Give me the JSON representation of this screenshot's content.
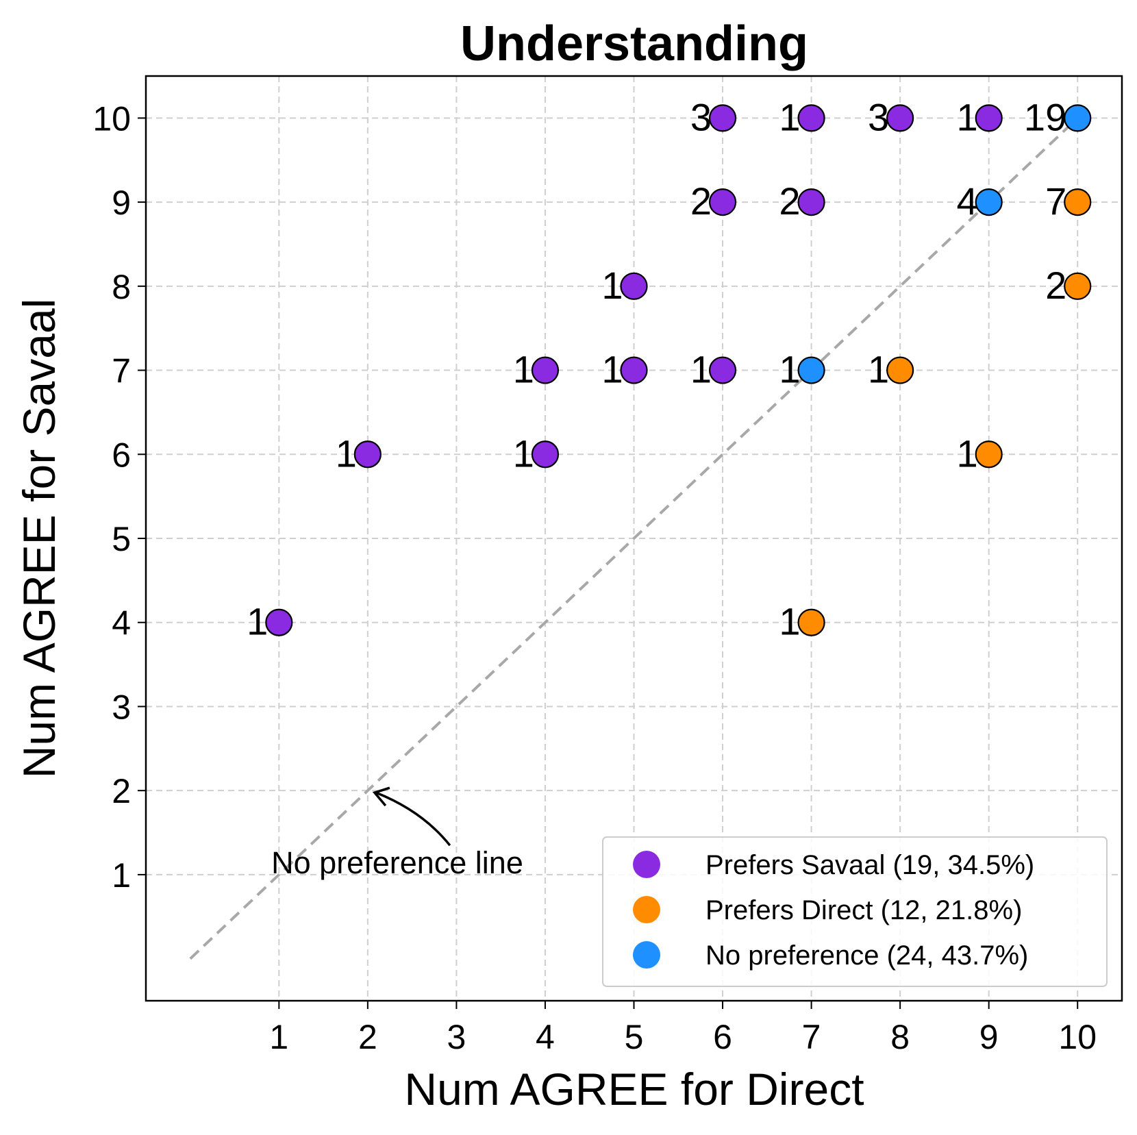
{
  "chart_data": {
    "type": "scatter",
    "title": "Understanding",
    "xlabel": "Num AGREE for Direct",
    "ylabel": "Num AGREE for Savaal",
    "xlim": [
      -0.5,
      10.5
    ],
    "ylim": [
      -0.5,
      10.5
    ],
    "xticks": [
      1,
      2,
      3,
      4,
      5,
      6,
      7,
      8,
      9,
      10
    ],
    "yticks": [
      1,
      2,
      3,
      4,
      5,
      6,
      7,
      8,
      9,
      10
    ],
    "grid": true,
    "legend_position": "bottom-right",
    "diagonal": {
      "from": [
        0,
        0
      ],
      "to": [
        10,
        10
      ],
      "label": "No preference line",
      "arrow_target": [
        2,
        2
      ]
    },
    "series": [
      {
        "name": "Prefers Savaal (19, 34.5%)",
        "color": "#8A2BE2",
        "points": [
          {
            "x": 6,
            "y": 10,
            "count": 3
          },
          {
            "x": 7,
            "y": 10,
            "count": 1
          },
          {
            "x": 8,
            "y": 10,
            "count": 3
          },
          {
            "x": 9,
            "y": 10,
            "count": 1
          },
          {
            "x": 6,
            "y": 9,
            "count": 2
          },
          {
            "x": 7,
            "y": 9,
            "count": 2
          },
          {
            "x": 5,
            "y": 8,
            "count": 1
          },
          {
            "x": 4,
            "y": 7,
            "count": 1
          },
          {
            "x": 5,
            "y": 7,
            "count": 1
          },
          {
            "x": 6,
            "y": 7,
            "count": 1
          },
          {
            "x": 2,
            "y": 6,
            "count": 1
          },
          {
            "x": 4,
            "y": 6,
            "count": 1
          },
          {
            "x": 1,
            "y": 4,
            "count": 1
          }
        ]
      },
      {
        "name": "Prefers Direct (12, 21.8%)",
        "color": "#FF8C00",
        "points": [
          {
            "x": 10,
            "y": 9,
            "count": 7
          },
          {
            "x": 10,
            "y": 8,
            "count": 2
          },
          {
            "x": 8,
            "y": 7,
            "count": 1
          },
          {
            "x": 9,
            "y": 6,
            "count": 1
          },
          {
            "x": 7,
            "y": 4,
            "count": 1
          }
        ]
      },
      {
        "name": "No preference (24, 43.7%)",
        "color": "#1E90FF",
        "points": [
          {
            "x": 10,
            "y": 10,
            "count": 19
          },
          {
            "x": 9,
            "y": 9,
            "count": 4
          },
          {
            "x": 7,
            "y": 7,
            "count": 1
          }
        ]
      }
    ]
  }
}
